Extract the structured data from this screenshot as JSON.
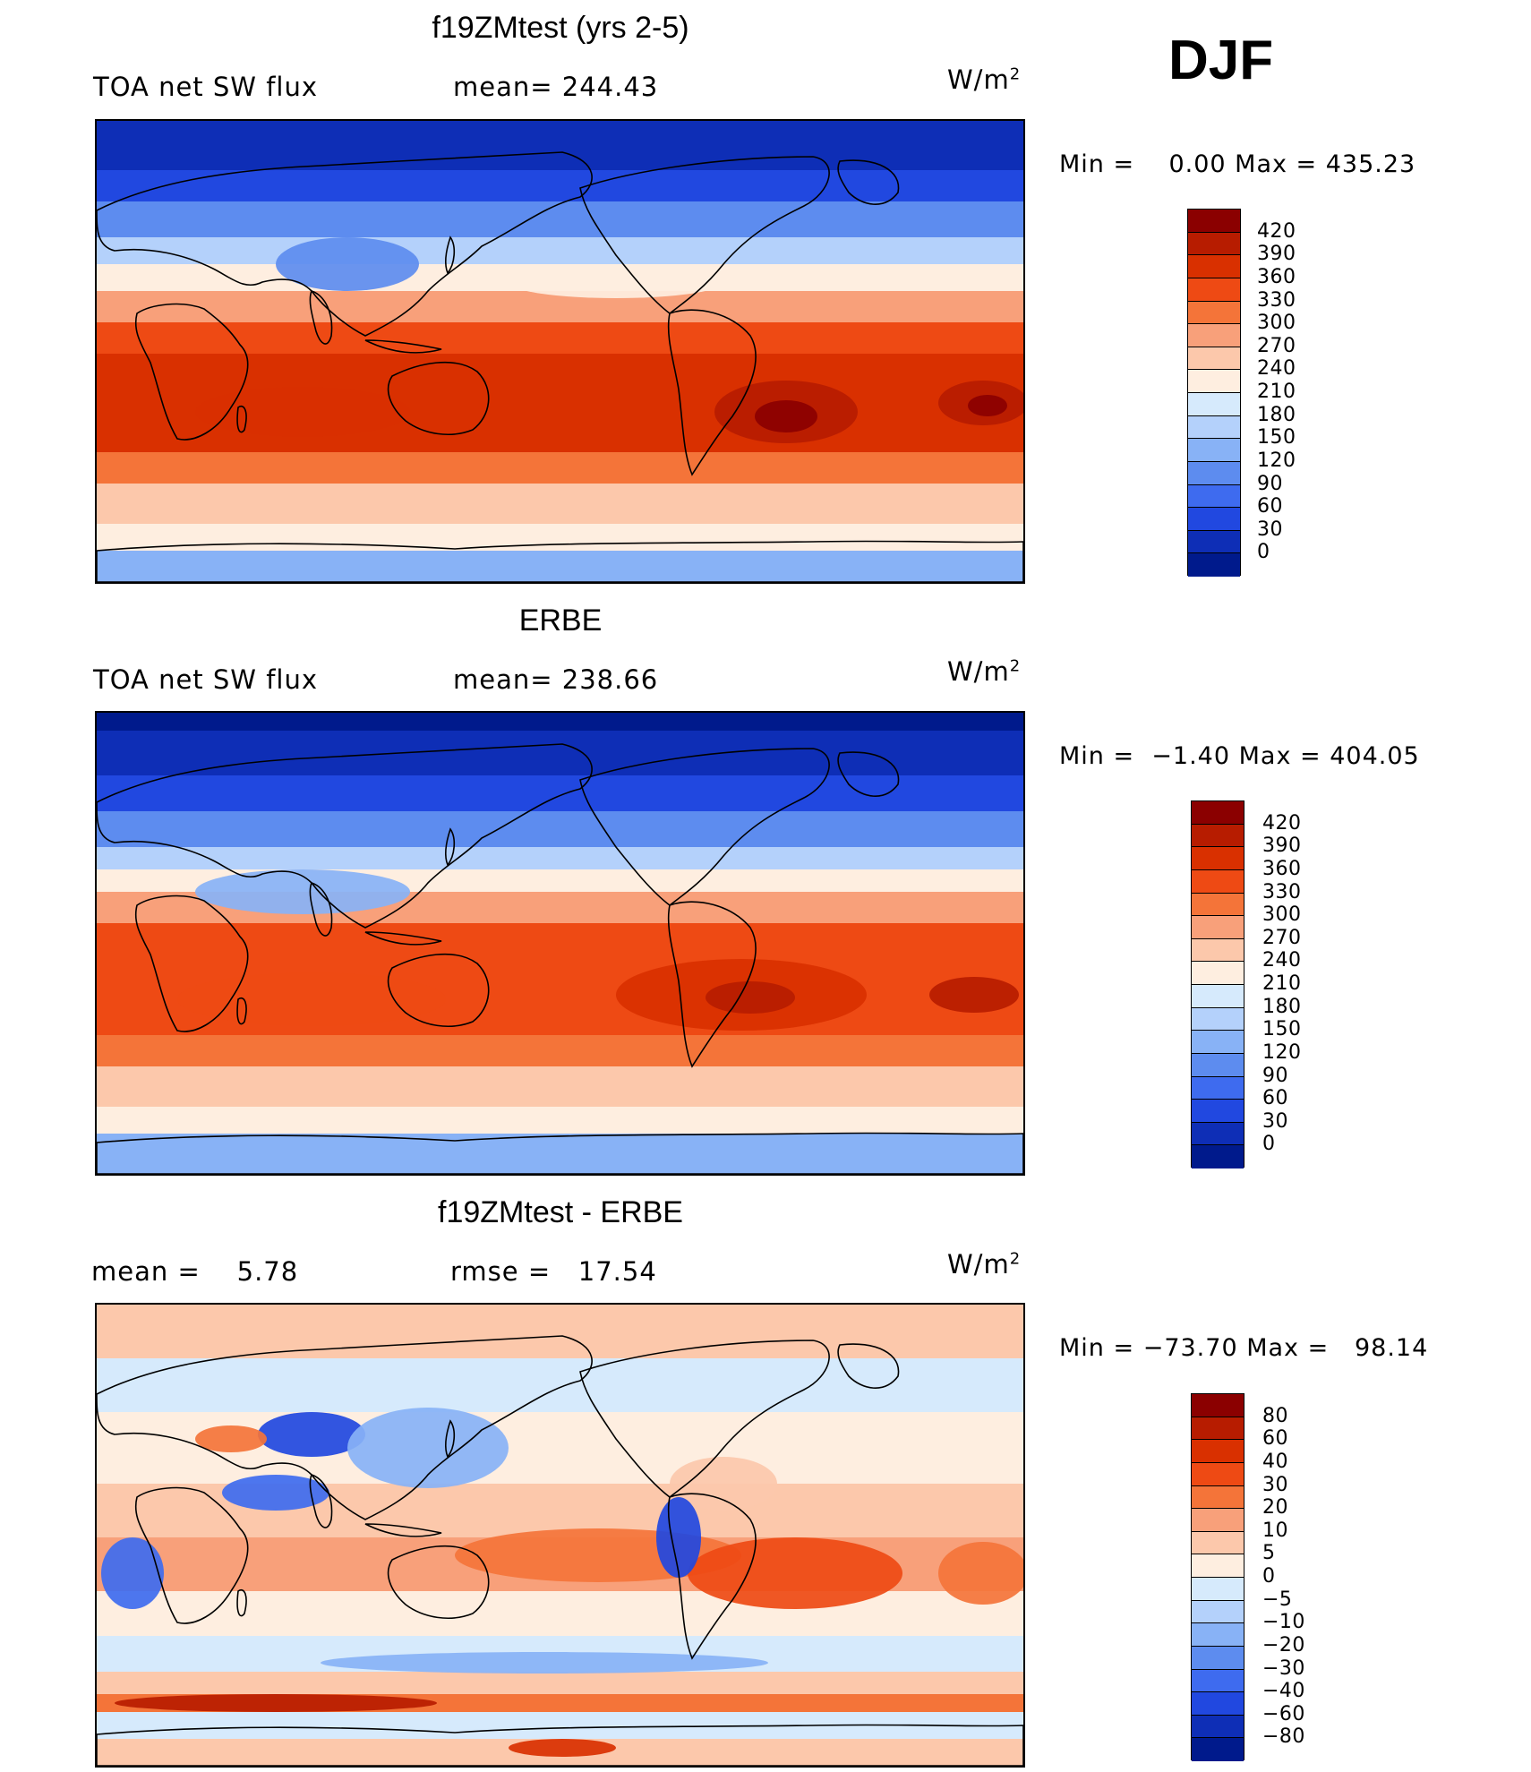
{
  "season": "DJF",
  "panels": [
    {
      "title": "f19ZMtest (yrs 2-5)",
      "left_label": "TOA net SW flux",
      "center_label": "mean= 244.43",
      "units_base": "W/m",
      "units_exp": "2",
      "minmax": "Min =    0.00 Max = 435.23",
      "map_type": "model",
      "colorbar": {
        "colors": [
          "#8b0000",
          "#b71c00",
          "#d93000",
          "#ee4a14",
          "#f47439",
          "#f8a07a",
          "#fcc8ab",
          "#feeee0",
          "#d6eafc",
          "#b4d1fb",
          "#88b2f6",
          "#5d8cef",
          "#3e6bef",
          "#2148e0",
          "#0e2eb6",
          "#001a8c"
        ],
        "labels": [
          "420",
          "390",
          "360",
          "330",
          "300",
          "270",
          "240",
          "210",
          "180",
          "150",
          "120",
          "90",
          "60",
          "30",
          "0"
        ]
      }
    },
    {
      "title": "ERBE",
      "left_label": "TOA net SW flux",
      "center_label": "mean= 238.66",
      "units_base": "W/m",
      "units_exp": "2",
      "minmax": "Min =  −1.40 Max = 404.05",
      "map_type": "obs",
      "colorbar": {
        "colors": [
          "#8b0000",
          "#b71c00",
          "#d93000",
          "#ee4a14",
          "#f47439",
          "#f8a07a",
          "#fcc8ab",
          "#feeee0",
          "#d6eafc",
          "#b4d1fb",
          "#88b2f6",
          "#5d8cef",
          "#3e6bef",
          "#2148e0",
          "#0e2eb6",
          "#001a8c"
        ],
        "labels": [
          "420",
          "390",
          "360",
          "330",
          "300",
          "270",
          "240",
          "210",
          "180",
          "150",
          "120",
          "90",
          "60",
          "30",
          "0"
        ]
      }
    },
    {
      "title": "f19ZMtest - ERBE",
      "left_label": "mean =    5.78",
      "center_label": "rmse =   17.54",
      "units_base": "W/m",
      "units_exp": "2",
      "minmax": "Min = −73.70 Max =   98.14",
      "map_type": "diff",
      "colorbar": {
        "colors": [
          "#8b0000",
          "#b71c00",
          "#d93000",
          "#ee4a14",
          "#f47439",
          "#f8a07a",
          "#fcc8ab",
          "#feeee0",
          "#d6eafc",
          "#b4d1fb",
          "#88b2f6",
          "#5d8cef",
          "#3e6bef",
          "#2148e0",
          "#0e2eb6",
          "#001a8c"
        ],
        "labels": [
          "80",
          "60",
          "40",
          "30",
          "20",
          "10",
          "5",
          "0",
          "−5",
          "−10",
          "−20",
          "−30",
          "−40",
          "−60",
          "−80"
        ]
      }
    }
  ]
}
